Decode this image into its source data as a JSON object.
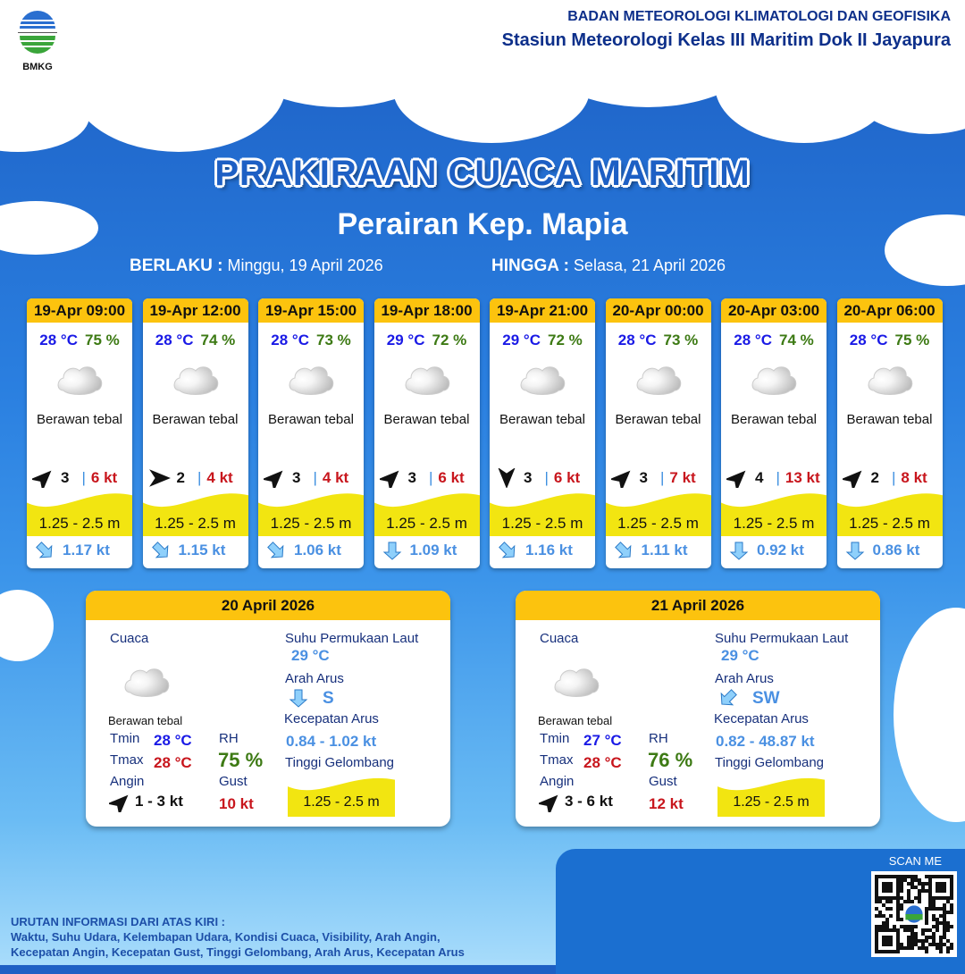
{
  "header": {
    "logo_text": "BMKG",
    "org": "BADAN METEOROLOGI KLIMATOLOGI DAN GEOFISIKA",
    "station": "Stasiun Meteorologi Kelas III Maritim Dok II Jayapura"
  },
  "title": "PRAKIRAAN CUACA MARITIM",
  "subtitle": "Perairan Kep. Mapia",
  "validity": {
    "from_label": "BERLAKU :",
    "from": "Minggu, 19 April 2026",
    "to_label": "HINGGA :",
    "to": "Selasa, 21 April 2026"
  },
  "colors": {
    "header_yellow": "#fcc30e",
    "wave_yellow": "#f2e511",
    "temp_blue": "#1a1ae6",
    "rh_green": "#3d7a14",
    "gust_red": "#c8161d",
    "current_blue": "#4a90e2"
  },
  "forecasts": [
    {
      "time": "19-Apr 09:00",
      "temp": "28 °C",
      "rh": "75 %",
      "icon": "cloud-icon",
      "condition": "Berawan tebal",
      "wind_dir": "NE",
      "wind_speed": "3",
      "gust": "6 kt",
      "wave": "1.25 - 2.5 m",
      "current_dir": "SE",
      "current_speed": "1.17 kt"
    },
    {
      "time": "19-Apr 12:00",
      "temp": "28 °C",
      "rh": "74 %",
      "icon": "cloud-icon",
      "condition": "Berawan tebal",
      "wind_dir": "E",
      "wind_speed": "2",
      "gust": "4 kt",
      "wave": "1.25 - 2.5 m",
      "current_dir": "SE",
      "current_speed": "1.15 kt"
    },
    {
      "time": "19-Apr 15:00",
      "temp": "28 °C",
      "rh": "73 %",
      "icon": "cloud-icon",
      "condition": "Berawan tebal",
      "wind_dir": "NE",
      "wind_speed": "3",
      "gust": "4 kt",
      "wave": "1.25 - 2.5 m",
      "current_dir": "SE",
      "current_speed": "1.06 kt"
    },
    {
      "time": "19-Apr 18:00",
      "temp": "29 °C",
      "rh": "72 %",
      "icon": "cloud-icon",
      "condition": "Berawan tebal",
      "wind_dir": "NE",
      "wind_speed": "3",
      "gust": "6 kt",
      "wave": "1.25 - 2.5 m",
      "current_dir": "S",
      "current_speed": "1.09 kt"
    },
    {
      "time": "19-Apr 21:00",
      "temp": "29 °C",
      "rh": "72 %",
      "icon": "cloud-icon",
      "condition": "Berawan tebal",
      "wind_dir": "S",
      "wind_speed": "3",
      "gust": "6 kt",
      "wave": "1.25 - 2.5 m",
      "current_dir": "SE",
      "current_speed": "1.16 kt"
    },
    {
      "time": "20-Apr 00:00",
      "temp": "28 °C",
      "rh": "73 %",
      "icon": "cloud-icon",
      "condition": "Berawan tebal",
      "wind_dir": "NE",
      "wind_speed": "3",
      "gust": "7 kt",
      "wave": "1.25 - 2.5 m",
      "current_dir": "SE",
      "current_speed": "1.11 kt"
    },
    {
      "time": "20-Apr 03:00",
      "temp": "28 °C",
      "rh": "74 %",
      "icon": "cloud-icon",
      "condition": "Berawan tebal",
      "wind_dir": "NE",
      "wind_speed": "4",
      "gust": "13 kt",
      "wave": "1.25 - 2.5 m",
      "current_dir": "S",
      "current_speed": "0.92 kt"
    },
    {
      "time": "20-Apr 06:00",
      "temp": "28 °C",
      "rh": "75 %",
      "icon": "cloud-icon",
      "condition": "Berawan tebal",
      "wind_dir": "NE",
      "wind_speed": "2",
      "gust": "8 kt",
      "wave": "1.25 - 2.5 m",
      "current_dir": "S",
      "current_speed": "0.86 kt"
    }
  ],
  "labels": {
    "weather": "Cuaca",
    "tmin": "Tmin",
    "tmax": "Tmax",
    "wind": "Angin",
    "rh": "RH",
    "gust": "Gust",
    "sst": "Suhu Permukaan Laut",
    "current_dir": "Arah Arus",
    "current_speed": "Kecepatan Arus",
    "wave": "Tinggi Gelombang"
  },
  "daily": [
    {
      "date": "20 April 2026",
      "condition": "Berawan tebal",
      "tmin": "28 °C",
      "tmax": "28 °C",
      "rh": "75 %",
      "wind_dir": "NE",
      "wind": "1  - 3 kt",
      "gust": "10 kt",
      "sst": "29 °C",
      "current_dir_arrow": "S",
      "current_dir": "S",
      "current_speed": "0.84  - 1.02 kt",
      "wave": "1.25 - 2.5 m"
    },
    {
      "date": "21 April 2026",
      "condition": "Berawan tebal",
      "tmin": "27 °C",
      "tmax": "28 °C",
      "rh": "76 %",
      "wind_dir": "NE",
      "wind": "3  - 6 kt",
      "gust": "12 kt",
      "sst": "29 °C",
      "current_dir_arrow": "SW",
      "current_dir": "SW",
      "current_speed": "0.82  - 48.87 kt",
      "wave": "1.25 - 2.5 m"
    }
  ],
  "footer": {
    "heading": "URUTAN INFORMASI DARI ATAS KIRI :",
    "line1": "Waktu, Suhu Udara, Kelembapan Udara, Kondisi Cuaca, Visibility, Arah Angin,",
    "line2": "Kecepatan Angin, Kecepatan Gust, Tinggi Gelombang, Arah Arus, Kecepatan Arus",
    "scan": "SCAN ME"
  }
}
